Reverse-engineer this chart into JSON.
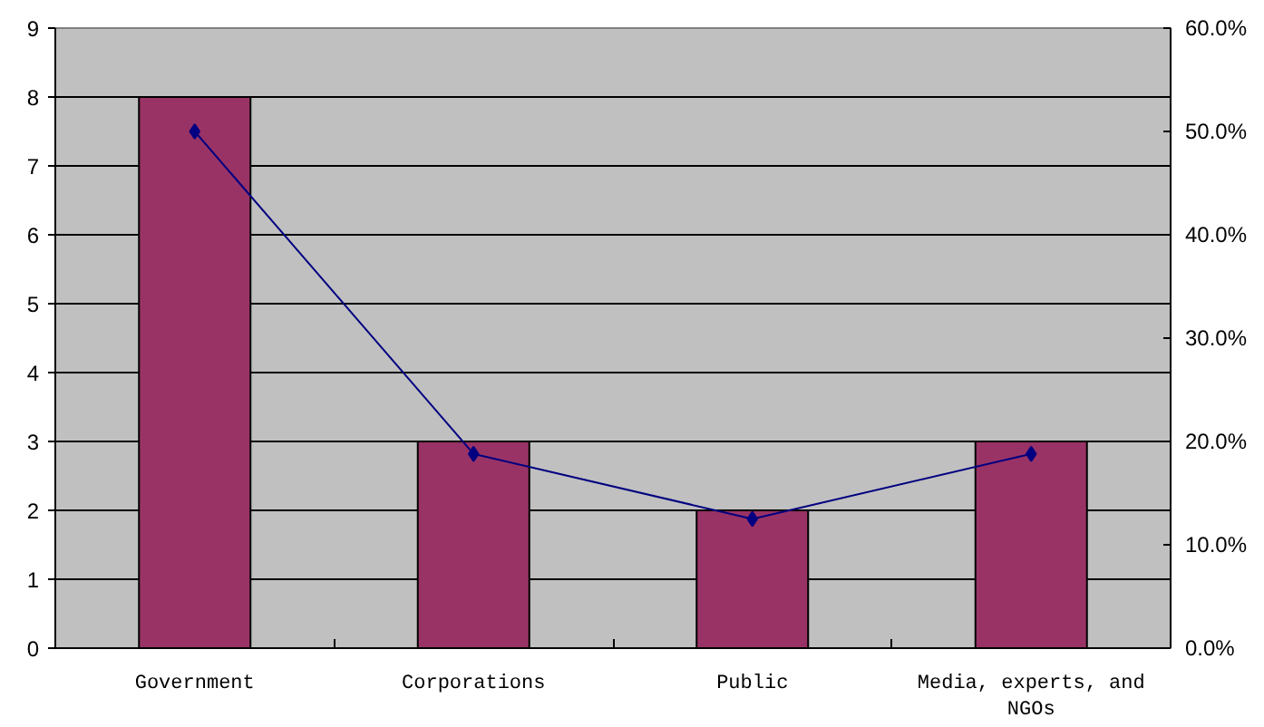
{
  "chart_data": {
    "type": "bar",
    "categories": [
      "Government",
      "Corporations",
      "Public",
      "Media, experts, and NGOs"
    ],
    "series": [
      {
        "color": "#993366",
        "values": [
          8,
          3,
          2,
          3
        ]
      },
      {
        "type": "line",
        "axis": "y2",
        "color": "#000080",
        "values": [
          50,
          18.8,
          12.5,
          18.8
        ]
      }
    ],
    "ylim": [
      0,
      9
    ],
    "yticks": [
      0,
      1,
      2,
      3,
      4,
      5,
      6,
      7,
      8,
      9
    ],
    "y2lim": [
      0,
      60
    ],
    "y2ticks": [
      {
        "value": 0,
        "label": "0.0%"
      },
      {
        "value": 10,
        "label": "10.0%"
      },
      {
        "value": 20,
        "label": "20.0%"
      },
      {
        "value": 30,
        "label": "30.0%"
      },
      {
        "value": 40,
        "label": "40.0%"
      },
      {
        "value": 50,
        "label": "50.0%"
      },
      {
        "value": 60,
        "label": "60.0%"
      }
    ],
    "grid": "y",
    "marker": "diamond",
    "line_style": "solid"
  }
}
